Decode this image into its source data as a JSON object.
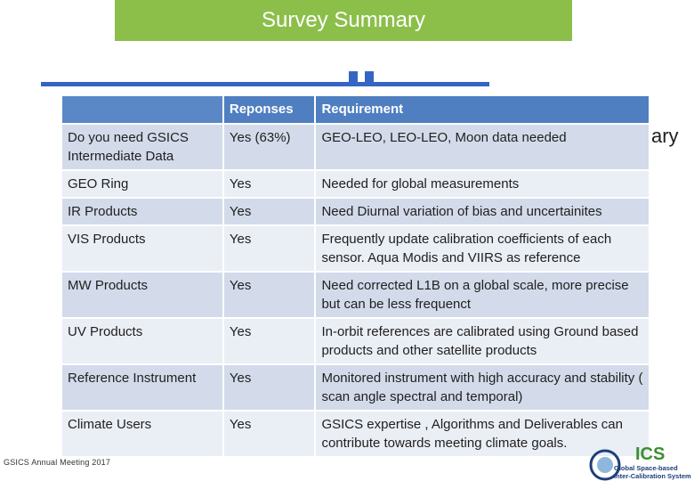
{
  "slide": {
    "title": "Survey Summary",
    "ghost_word": "ary",
    "footer": "GSICS Annual Meeting 2017"
  },
  "table": {
    "headers": [
      "",
      "Reponses",
      "Requirement"
    ],
    "rows": [
      {
        "topic": "Do you need GSICS Intermediate Data",
        "response": "Yes (63%)",
        "requirement": "GEO-LEO, LEO-LEO, Moon  data needed"
      },
      {
        "topic": "GEO Ring",
        "response": "Yes",
        "requirement": "Needed for global measurements"
      },
      {
        "topic": "IR Products",
        "response": "Yes",
        "requirement": "Need Diurnal variation of bias and uncertainites"
      },
      {
        "topic": "VIS Products",
        "response": "Yes",
        "requirement": "Frequently update calibration coefficients of each sensor. Aqua Modis and VIIRS as reference"
      },
      {
        "topic": "MW Products",
        "response": "Yes",
        "requirement": "Need corrected L1B on a global scale, more precise but can be less frequenct"
      },
      {
        "topic": "UV Products",
        "response": "Yes",
        "requirement": "In-orbit references are calibrated using Ground based products and other satellite products"
      },
      {
        "topic": "Reference Instrument",
        "response": "Yes",
        "requirement": "Monitored instrument with high accuracy and stability  ( scan angle spectral and temporal)"
      },
      {
        "topic": "Climate Users",
        "response": "Yes",
        "requirement": "GSICS expertise , Algorithms and Deliverables can contribute towards meeting climate goals."
      }
    ]
  },
  "logo": {
    "acronym": "ICS",
    "line1": "Global Space-based",
    "line2": "Inter-Calibration System"
  },
  "colors": {
    "banner": "#8cbf4a",
    "header_blue": "#4f7fc0",
    "row_dark": "#d3dbea",
    "row_light": "#eaeef5",
    "logo_green": "#3a8f2f",
    "logo_navy": "#1e3f7a"
  }
}
